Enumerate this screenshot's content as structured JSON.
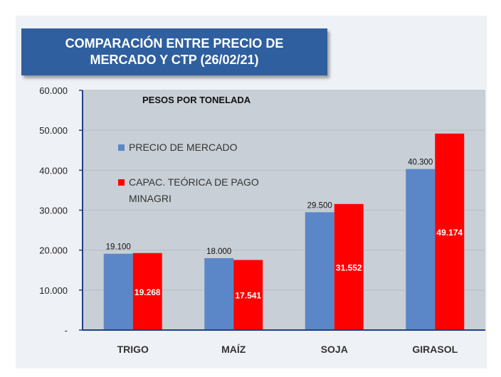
{
  "title": "COMPARACIÓN ENTRE PRECIO DE\nMERCADO Y CTP (26/02/21)",
  "colors": {
    "panel": "#eef1f5",
    "plot": "#c9cfd6",
    "title_bg": "#2f5f9e",
    "axis": "#1f3f8c",
    "series_market": "#5b87c8",
    "series_ctp": "#ff0000"
  },
  "chart_data": {
    "type": "bar",
    "unit_label": "PESOS POR TONELADA",
    "categories": [
      "TRIGO",
      "MAÍZ",
      "SOJA",
      "GIRASOL"
    ],
    "series": [
      {
        "name": "PRECIO DE MERCADO",
        "values": [
          19100,
          18000,
          29500,
          40300
        ],
        "labels": [
          "19.100",
          "18.000",
          "29.500",
          "40.300"
        ]
      },
      {
        "name": "CAPAC. TEÓRICA DE PAGO MINAGRI",
        "name_lines": [
          "CAPAC. TEÓRICA DE PAGO",
          "MINAGRI"
        ],
        "values": [
          19268,
          17541,
          31552,
          49174
        ],
        "labels": [
          "19.268",
          "17.541",
          "31.552",
          "49.174"
        ]
      }
    ],
    "ylim": [
      0,
      60000
    ],
    "yticks": [
      0,
      10000,
      20000,
      30000,
      40000,
      50000,
      60000
    ],
    "ytick_labels": [
      "-",
      "10.000",
      "20.000",
      "30.000",
      "40.000",
      "50.000",
      "60.000"
    ],
    "grid": true,
    "legend": "top-left"
  }
}
